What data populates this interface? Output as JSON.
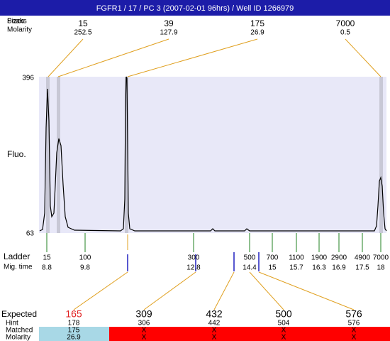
{
  "header": {
    "title": "FGFR1 / 17 / PC 3 (2007-02-01 96hrs) / Well ID 1266979"
  },
  "peaks": {
    "labels": [
      "Peaks",
      "Sizes"
    ],
    "molarity_label": "Molarity",
    "sizes": [
      15,
      39,
      175,
      7000
    ],
    "molarity": [
      252.5,
      127.9,
      26.9,
      0.5
    ]
  },
  "plot": {
    "y_label": "Fluo.",
    "y_top": 396,
    "y_bottom": 63
  },
  "ladder": {
    "label": "Ladder",
    "time_label": "Mig. time",
    "sizes": [
      15,
      100,
      300,
      500,
      700,
      1100,
      1900,
      2900,
      4900,
      7000
    ],
    "times": [
      8.8,
      9.8,
      12.8,
      14.4,
      15,
      15.7,
      16.3,
      16.9,
      17.5,
      18
    ]
  },
  "table": {
    "labels": [
      "Expected",
      "Hint",
      "Matched",
      "Molarity"
    ],
    "rows": [
      [
        165,
        309,
        432,
        500,
        576
      ],
      [
        178,
        306,
        442,
        504,
        576
      ],
      [
        "175",
        "X",
        "X",
        "X",
        "X"
      ],
      [
        "26.9",
        "X",
        "X",
        "X",
        "X"
      ]
    ]
  }
}
